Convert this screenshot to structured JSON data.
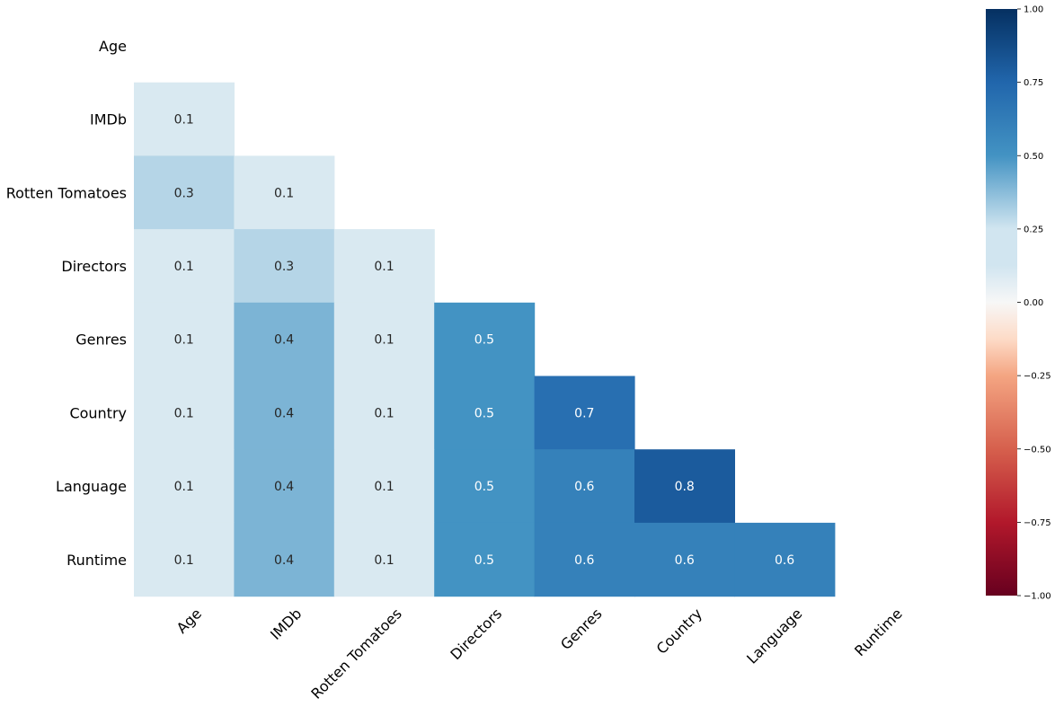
{
  "chart_data": {
    "type": "heatmap",
    "title": "",
    "xlabel": "",
    "ylabel": "",
    "variables": [
      "Age",
      "IMDb",
      "Rotten Tomatoes",
      "Directors",
      "Genres",
      "Country",
      "Language",
      "Runtime"
    ],
    "cells": [
      {
        "row": "IMDb",
        "col": "Age",
        "value": 0.1
      },
      {
        "row": "Rotten Tomatoes",
        "col": "Age",
        "value": 0.3
      },
      {
        "row": "Rotten Tomatoes",
        "col": "IMDb",
        "value": 0.1
      },
      {
        "row": "Directors",
        "col": "Age",
        "value": 0.1
      },
      {
        "row": "Directors",
        "col": "IMDb",
        "value": 0.3
      },
      {
        "row": "Directors",
        "col": "Rotten Tomatoes",
        "value": 0.1
      },
      {
        "row": "Genres",
        "col": "Age",
        "value": 0.1
      },
      {
        "row": "Genres",
        "col": "IMDb",
        "value": 0.4
      },
      {
        "row": "Genres",
        "col": "Rotten Tomatoes",
        "value": 0.1
      },
      {
        "row": "Genres",
        "col": "Directors",
        "value": 0.5
      },
      {
        "row": "Country",
        "col": "Age",
        "value": 0.1
      },
      {
        "row": "Country",
        "col": "IMDb",
        "value": 0.4
      },
      {
        "row": "Country",
        "col": "Rotten Tomatoes",
        "value": 0.1
      },
      {
        "row": "Country",
        "col": "Directors",
        "value": 0.5
      },
      {
        "row": "Country",
        "col": "Genres",
        "value": 0.7
      },
      {
        "row": "Language",
        "col": "Age",
        "value": 0.1
      },
      {
        "row": "Language",
        "col": "IMDb",
        "value": 0.4
      },
      {
        "row": "Language",
        "col": "Rotten Tomatoes",
        "value": 0.1
      },
      {
        "row": "Language",
        "col": "Directors",
        "value": 0.5
      },
      {
        "row": "Language",
        "col": "Genres",
        "value": 0.6
      },
      {
        "row": "Language",
        "col": "Country",
        "value": 0.8
      },
      {
        "row": "Runtime",
        "col": "Age",
        "value": 0.1
      },
      {
        "row": "Runtime",
        "col": "IMDb",
        "value": 0.4
      },
      {
        "row": "Runtime",
        "col": "Rotten Tomatoes",
        "value": 0.1
      },
      {
        "row": "Runtime",
        "col": "Directors",
        "value": 0.5
      },
      {
        "row": "Runtime",
        "col": "Genres",
        "value": 0.6
      },
      {
        "row": "Runtime",
        "col": "Country",
        "value": 0.6
      },
      {
        "row": "Runtime",
        "col": "Language",
        "value": 0.6
      }
    ],
    "colorbar": {
      "range": [
        -1.0,
        1.0
      ],
      "ticks": [
        1.0,
        0.75,
        0.5,
        0.25,
        0.0,
        -0.25,
        -0.5,
        -0.75,
        -1.0
      ],
      "tick_labels": [
        "1.00",
        "0.75",
        "0.50",
        "0.25",
        "0.00",
        "−0.25",
        "−0.50",
        "−0.75",
        "−1.00"
      ],
      "colormap": "RdBu",
      "color_stops": [
        {
          "v": -1.0,
          "color": "#67001f"
        },
        {
          "v": -0.75,
          "color": "#b2182b"
        },
        {
          "v": -0.5,
          "color": "#d6604d"
        },
        {
          "v": -0.25,
          "color": "#f4a582"
        },
        {
          "v": -0.125,
          "color": "#fddbc7"
        },
        {
          "v": 0.0,
          "color": "#f7f7f7"
        },
        {
          "v": 0.125,
          "color": "#d1e5f0"
        },
        {
          "v": 0.25,
          "color": "#d1e5f0"
        },
        {
          "v": 0.5,
          "color": "#4393c3"
        },
        {
          "v": 0.75,
          "color": "#2166ac"
        },
        {
          "v": 1.0,
          "color": "#053061"
        }
      ]
    },
    "grid": false,
    "legend": "colorbar-right"
  }
}
